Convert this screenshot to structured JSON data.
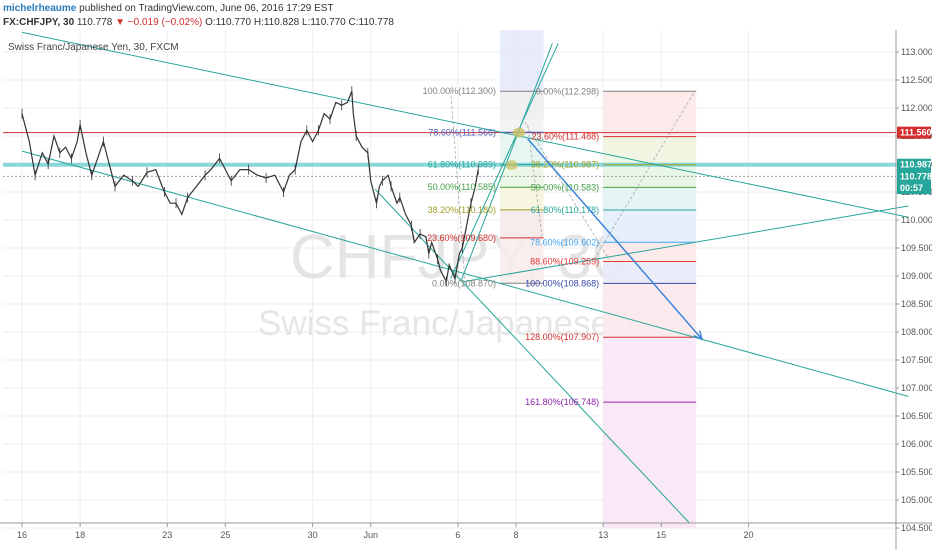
{
  "header": {
    "author": "michelrheaume",
    "published": "published on TradingView.com, June 06, 2016 17:29 EST",
    "symbol": "FX:CHFJPY, 30",
    "last": "110.778",
    "change": "−0.019 (−0.02%)",
    "ohlc": "O:110.770 H:110.828 L:110.770 C:110.778"
  },
  "chart_data": {
    "type": "line",
    "legend_title": "Swiss Franc/Japanese Yen, 30, FXCM",
    "watermark_symbol": "CHFJPY, 30",
    "watermark_name": "Swiss Franc/Japanese Yen",
    "y_axis": {
      "range": [
        104.5,
        113.0
      ],
      "ticks": [
        "113.000",
        "112.500",
        "112.000",
        "111.500",
        "111.000",
        "110.500",
        "110.000",
        "109.500",
        "109.000",
        "108.500",
        "108.000",
        "107.500",
        "107.000",
        "106.500",
        "106.000",
        "105.500",
        "105.000",
        "104.500"
      ],
      "price_tags": [
        {
          "label": "111.560",
          "value": 111.56,
          "color": "#d32f2f"
        },
        {
          "label": "110.987",
          "value": 110.987,
          "color": "#26a69a"
        },
        {
          "label": "110.778",
          "value": 110.778,
          "color": "#26a69a"
        },
        {
          "label": "00:57",
          "value": 110.57,
          "color": "#26a69a"
        }
      ]
    },
    "x_axis": {
      "ticks": [
        {
          "label": "16",
          "i": 0
        },
        {
          "label": "18",
          "i": 2
        },
        {
          "label": "23",
          "i": 5
        },
        {
          "label": "25",
          "i": 7
        },
        {
          "label": "30",
          "i": 10
        },
        {
          "label": "Jun",
          "i": 12
        },
        {
          "label": "6",
          "i": 15
        },
        {
          "label": "8",
          "i": 17
        },
        {
          "label": "13",
          "i": 20
        },
        {
          "label": "15",
          "i": 22
        },
        {
          "label": "20",
          "i": 25
        }
      ]
    },
    "price_path": [
      [
        0.0,
        111.9
      ],
      [
        0.25,
        111.4
      ],
      [
        0.45,
        110.8
      ],
      [
        0.7,
        111.2
      ],
      [
        0.9,
        111.0
      ],
      [
        1.1,
        111.5
      ],
      [
        1.3,
        111.2
      ],
      [
        1.5,
        111.3
      ],
      [
        1.7,
        111.1
      ],
      [
        1.9,
        111.4
      ],
      [
        2.0,
        111.7
      ],
      [
        2.2,
        111.2
      ],
      [
        2.4,
        110.8
      ],
      [
        2.6,
        111.1
      ],
      [
        2.8,
        111.4
      ],
      [
        3.0,
        111.0
      ],
      [
        3.2,
        110.6
      ],
      [
        3.5,
        110.8
      ],
      [
        3.8,
        110.7
      ],
      [
        4.0,
        110.6
      ],
      [
        4.3,
        110.85
      ],
      [
        4.6,
        110.9
      ],
      [
        4.9,
        110.5
      ],
      [
        5.1,
        110.3
      ],
      [
        5.3,
        110.3
      ],
      [
        5.5,
        110.1
      ],
      [
        5.7,
        110.4
      ],
      [
        6.0,
        110.6
      ],
      [
        6.3,
        110.8
      ],
      [
        6.5,
        110.9
      ],
      [
        6.8,
        111.1
      ],
      [
        7.0,
        110.9
      ],
      [
        7.2,
        110.7
      ],
      [
        7.5,
        110.9
      ],
      [
        7.8,
        110.9
      ],
      [
        8.1,
        110.8
      ],
      [
        8.4,
        110.75
      ],
      [
        8.7,
        110.8
      ],
      [
        9.0,
        110.5
      ],
      [
        9.2,
        110.8
      ],
      [
        9.4,
        110.9
      ],
      [
        9.6,
        111.4
      ],
      [
        9.8,
        111.6
      ],
      [
        10.0,
        111.4
      ],
      [
        10.2,
        111.6
      ],
      [
        10.4,
        111.9
      ],
      [
        10.6,
        111.8
      ],
      [
        10.8,
        112.1
      ],
      [
        11.0,
        112.05
      ],
      [
        11.2,
        112.1
      ],
      [
        11.35,
        112.3
      ],
      [
        11.4,
        111.9
      ],
      [
        11.5,
        111.5
      ],
      [
        11.7,
        111.3
      ],
      [
        11.9,
        111.2
      ],
      [
        12.0,
        110.7
      ],
      [
        12.2,
        110.3
      ],
      [
        12.3,
        110.6
      ],
      [
        12.4,
        110.7
      ],
      [
        12.6,
        110.8
      ],
      [
        12.7,
        110.6
      ],
      [
        12.9,
        110.3
      ],
      [
        13.0,
        110.4
      ],
      [
        13.2,
        110.1
      ],
      [
        13.4,
        109.9
      ],
      [
        13.5,
        109.6
      ],
      [
        13.7,
        109.75
      ],
      [
        13.9,
        109.7
      ],
      [
        14.0,
        109.4
      ],
      [
        14.1,
        109.6
      ],
      [
        14.3,
        109.3
      ],
      [
        14.4,
        109.1
      ],
      [
        14.6,
        108.9
      ],
      [
        14.7,
        109.2
      ],
      [
        14.9,
        108.95
      ],
      [
        15.05,
        109.4
      ],
      [
        15.15,
        109.5
      ],
      [
        15.3,
        109.9
      ],
      [
        15.45,
        110.3
      ],
      [
        15.6,
        110.6
      ],
      [
        15.7,
        110.9
      ]
    ],
    "fib_retracement": {
      "levels": [
        {
          "label": "100.00%(112.300)",
          "price": 112.3,
          "color": "#808080"
        },
        {
          "label": "78.60%(111.566)",
          "price": 111.566,
          "color": "#4a5fc1"
        },
        {
          "label": "61.80%(110.989)",
          "price": 110.989,
          "color": "#26a69a"
        },
        {
          "label": "50.00%(110.585)",
          "price": 110.585,
          "color": "#43a047"
        },
        {
          "label": "38.20%(110.180)",
          "price": 110.18,
          "color": "#9e9d24"
        },
        {
          "label": "23.60%(109.680)",
          "price": 109.68,
          "color": "#d32f2f"
        },
        {
          "label": "0.00%(108.870)",
          "price": 108.87,
          "color": "#808080"
        }
      ]
    },
    "fib_extension": {
      "levels": [
        {
          "label": "0.00%(112.298)",
          "price": 112.298,
          "color": "#808080"
        },
        {
          "label": "23.60%(111.488)",
          "price": 111.488,
          "color": "#d32f2f"
        },
        {
          "label": "38.20%(110.987)",
          "price": 110.987,
          "color": "#9e9d24"
        },
        {
          "label": "50.00%(110.583)",
          "price": 110.583,
          "color": "#43a047"
        },
        {
          "label": "61.80%(110.178)",
          "price": 110.178,
          "color": "#26a69a"
        },
        {
          "label": "78.60%(109.602)",
          "price": 109.602,
          "color": "#42a5f5"
        },
        {
          "label": "88.60%(109.259)",
          "price": 109.259,
          "color": "#e53935"
        },
        {
          "label": "100.00%(108.868)",
          "price": 108.868,
          "color": "#3949ab"
        },
        {
          "label": "128.00%(107.907)",
          "price": 107.907,
          "color": "#d32f2f"
        },
        {
          "label": "161.80%(106.748)",
          "price": 106.748,
          "color": "#8e24aa"
        }
      ]
    },
    "horizontal_lines": [
      {
        "price": 111.56,
        "color": "#d32f2f"
      },
      {
        "price": 110.987,
        "color": "#7fd3d6"
      },
      {
        "price": 110.778,
        "color": "#9e9e9e"
      }
    ],
    "trendlines": [
      {
        "from": [
          0.0,
          113.35
        ],
        "to": [
          30.5,
          110.05
        ],
        "color": "#26a69a"
      },
      {
        "from": [
          0.0,
          111.23
        ],
        "to": [
          30.5,
          106.85
        ],
        "color": "#26a69a"
      },
      {
        "from": [
          12.15,
          110.55
        ],
        "to": [
          22.95,
          104.6
        ],
        "color": "#26a69a"
      },
      {
        "from": [
          14.75,
          108.95
        ],
        "to": [
          18.45,
          113.15
        ],
        "color": "#26a69a"
      },
      {
        "from": [
          15.1,
          108.9
        ],
        "to": [
          18.25,
          113.15
        ],
        "color": "#26a69a"
      },
      {
        "from": [
          15.2,
          108.9
        ],
        "to": [
          30.5,
          110.25
        ],
        "color": "#26a69a"
      }
    ],
    "projection_arrow": {
      "from": [
        17.4,
        111.45
      ],
      "to": [
        23.4,
        107.87
      ],
      "color": "#3d85d9"
    }
  },
  "colors": {
    "grid": "#eeeeee",
    "axis_text": "#555555",
    "watermark": "#e4e4e4",
    "price_line": "#333333"
  }
}
